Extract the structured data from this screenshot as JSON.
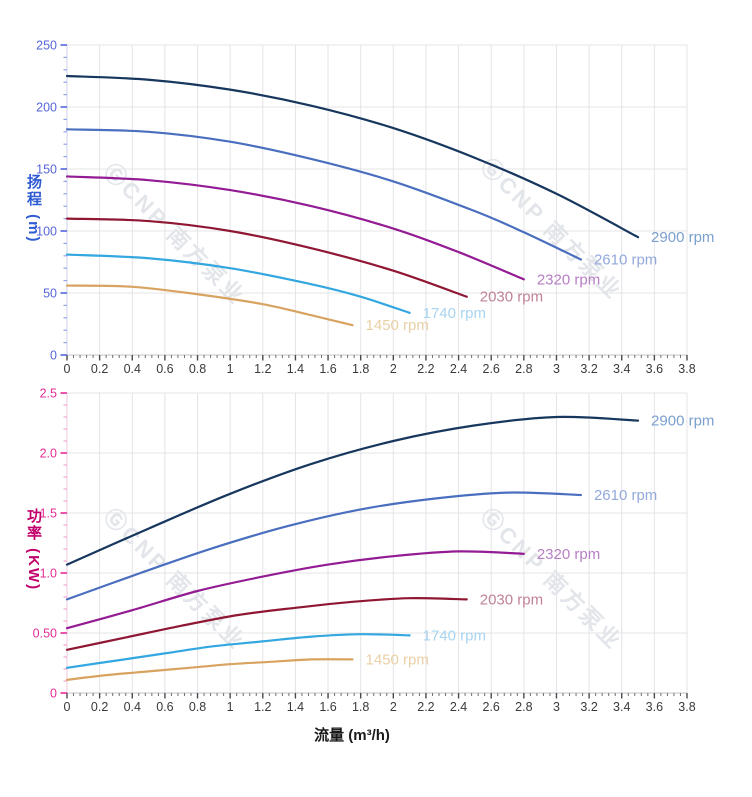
{
  "watermark": {
    "text": "ⒼCNP 南方泵业"
  },
  "chart_data": [
    {
      "type": "line",
      "id": "head",
      "title": "",
      "xlabel": "",
      "ylabel": "扬程 (m)",
      "x_range": [
        0,
        3.8
      ],
      "y_range": [
        0,
        250
      ],
      "x_major_step": 0.2,
      "x_minor_step": 0.04,
      "y_major_step": 50,
      "y_minor_step": 10,
      "grid": true,
      "legend_position": "end-of-line",
      "x_tick_labels": [
        "0",
        "0.2",
        "0.4",
        "0.6",
        "0.8",
        "1",
        "1.2",
        "1.4",
        "1.6",
        "1.8",
        "2",
        "2.2",
        "2.4",
        "2.6",
        "2.8",
        "3",
        "3.2",
        "3.4",
        "3.6",
        "3.8"
      ],
      "y_tick_labels": [
        "0",
        "50",
        "100",
        "150",
        "200",
        "250"
      ],
      "colors": {
        "ylabel": "#2f5bd3",
        "y_tick_label": "#5565d9",
        "y_tick_major": "#5565d9",
        "y_tick_minor": "#96a2e8",
        "x_tick_label": "#3a3a3a",
        "x_tick_major": "#4a4a4a",
        "x_tick_minor": "#6e6e6e",
        "grid": "#e4e4e7",
        "y_axis_line": "#ccd3ea",
        "x_axis_line": "#c4c6cc"
      },
      "series": [
        {
          "name": "2900 rpm",
          "color": "#17375e",
          "label_color": "#7ba0ce",
          "points": [
            [
              0,
              225
            ],
            [
              0.5,
              222
            ],
            [
              1,
              214
            ],
            [
              1.5,
              201
            ],
            [
              2,
              183
            ],
            [
              2.5,
              159
            ],
            [
              3,
              130
            ],
            [
              3.5,
              95
            ]
          ]
        },
        {
          "name": "2610 rpm",
          "color": "#4a6fbf",
          "label_color": "#93a9dc",
          "points": [
            [
              0,
              182
            ],
            [
              0.5,
              180
            ],
            [
              1,
              172
            ],
            [
              1.5,
              158
            ],
            [
              2,
              140
            ],
            [
              2.5,
              116
            ],
            [
              2.8,
              99
            ],
            [
              3.15,
              77
            ]
          ]
        },
        {
          "name": "2320 rpm",
          "color": "#931b93",
          "label_color": "#b77fc4",
          "points": [
            [
              0,
              144
            ],
            [
              0.5,
              141
            ],
            [
              1,
              133
            ],
            [
              1.5,
              120
            ],
            [
              2,
              102
            ],
            [
              2.4,
              83
            ],
            [
              2.8,
              61
            ]
          ]
        },
        {
          "name": "2030 rpm",
          "color": "#8f1733",
          "label_color": "#c08398",
          "points": [
            [
              0,
              110
            ],
            [
              0.5,
              108
            ],
            [
              1,
              100
            ],
            [
              1.5,
              86
            ],
            [
              2,
              68
            ],
            [
              2.45,
              47
            ]
          ]
        },
        {
          "name": "1740 rpm",
          "color": "#33a7e0",
          "label_color": "#a8d4f2",
          "points": [
            [
              0,
              81
            ],
            [
              0.5,
              78
            ],
            [
              1,
              70
            ],
            [
              1.5,
              57
            ],
            [
              1.8,
              47
            ],
            [
              2.1,
              34
            ]
          ]
        },
        {
          "name": "1450 rpm",
          "color": "#d8a360",
          "label_color": "#ead0a5",
          "points": [
            [
              0,
              56
            ],
            [
              0.4,
              55
            ],
            [
              0.8,
              49
            ],
            [
              1.2,
              41
            ],
            [
              1.5,
              32
            ],
            [
              1.75,
              24
            ]
          ]
        }
      ]
    },
    {
      "type": "line",
      "id": "power",
      "title": "",
      "xlabel": "流量 (m³/h)",
      "ylabel": "功率 (KW)",
      "x_range": [
        0,
        3.8
      ],
      "y_range": [
        0,
        2.5
      ],
      "x_major_step": 0.2,
      "x_minor_step": 0.04,
      "y_major_step": 0.5,
      "y_minor_step": 0.1,
      "grid": true,
      "legend_position": "end-of-line",
      "x_tick_labels": [
        "0",
        "0.2",
        "0.4",
        "0.6",
        "0.8",
        "1",
        "1.2",
        "1.4",
        "1.6",
        "1.8",
        "2",
        "2.2",
        "2.4",
        "2.6",
        "2.8",
        "3",
        "3.2",
        "3.4",
        "3.6",
        "3.8"
      ],
      "y_tick_labels": [
        "0",
        "0.50",
        "1.0",
        "1.5",
        "2.0",
        "2.5"
      ],
      "colors": {
        "ylabel": "#c2006b",
        "y_tick_label": "#e52c96",
        "y_tick_major": "#e52c96",
        "y_tick_minor": "#f2a3cf",
        "x_tick_label": "#3a3a3a",
        "x_tick_major": "#4a4a4a",
        "x_tick_minor": "#6e6e6e",
        "grid": "#e4e4e7",
        "y_axis_line": "#ecc9dd",
        "x_axis_line": "#c4c6cc"
      },
      "series": [
        {
          "name": "2900 rpm",
          "color": "#17375e",
          "label_color": "#7ba0ce",
          "points": [
            [
              0,
              1.07
            ],
            [
              0.5,
              1.37
            ],
            [
              1,
              1.66
            ],
            [
              1.5,
              1.91
            ],
            [
              2,
              2.1
            ],
            [
              2.5,
              2.23
            ],
            [
              3,
              2.3
            ],
            [
              3.5,
              2.27
            ]
          ]
        },
        {
          "name": "2610 rpm",
          "color": "#4a6fbf",
          "label_color": "#93a9dc",
          "points": [
            [
              0,
              0.78
            ],
            [
              0.45,
              1.0
            ],
            [
              0.9,
              1.21
            ],
            [
              1.35,
              1.39
            ],
            [
              1.8,
              1.53
            ],
            [
              2.25,
              1.62
            ],
            [
              2.7,
              1.67
            ],
            [
              3.15,
              1.65
            ]
          ]
        },
        {
          "name": "2320 rpm",
          "color": "#931b93",
          "label_color": "#b77fc4",
          "points": [
            [
              0,
              0.54
            ],
            [
              0.4,
              0.69
            ],
            [
              0.8,
              0.85
            ],
            [
              1.2,
              0.97
            ],
            [
              1.6,
              1.07
            ],
            [
              2,
              1.14
            ],
            [
              2.4,
              1.18
            ],
            [
              2.8,
              1.16
            ]
          ]
        },
        {
          "name": "2030 rpm",
          "color": "#8f1733",
          "label_color": "#c08398",
          "points": [
            [
              0,
              0.36
            ],
            [
              0.35,
              0.46
            ],
            [
              0.7,
              0.56
            ],
            [
              1.05,
              0.65
            ],
            [
              1.4,
              0.71
            ],
            [
              1.75,
              0.76
            ],
            [
              2.1,
              0.79
            ],
            [
              2.45,
              0.78
            ]
          ]
        },
        {
          "name": "1740 rpm",
          "color": "#33a7e0",
          "label_color": "#a8d4f2",
          "points": [
            [
              0,
              0.21
            ],
            [
              0.3,
              0.27
            ],
            [
              0.6,
              0.33
            ],
            [
              0.9,
              0.39
            ],
            [
              1.2,
              0.43
            ],
            [
              1.5,
              0.47
            ],
            [
              1.8,
              0.49
            ],
            [
              2.1,
              0.48
            ]
          ]
        },
        {
          "name": "1450 rpm",
          "color": "#d8a360",
          "label_color": "#ead0a5",
          "points": [
            [
              0,
              0.11
            ],
            [
              0.25,
              0.15
            ],
            [
              0.5,
              0.18
            ],
            [
              0.75,
              0.21
            ],
            [
              1,
              0.24
            ],
            [
              1.25,
              0.26
            ],
            [
              1.5,
              0.28
            ],
            [
              1.75,
              0.28
            ]
          ]
        }
      ]
    }
  ]
}
